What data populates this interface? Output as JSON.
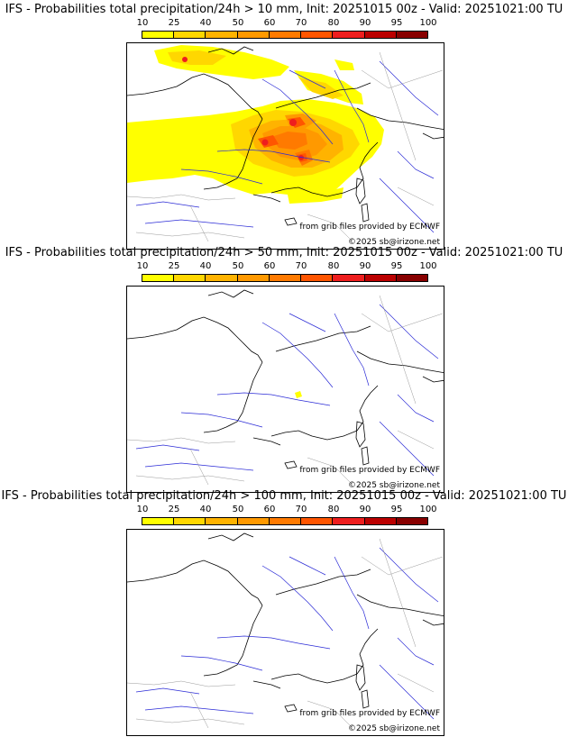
{
  "colorbar": {
    "ticks": [
      "10",
      "25",
      "40",
      "50",
      "60",
      "70",
      "80",
      "90",
      "95",
      "100"
    ],
    "colors": [
      "#ffff00",
      "#ffd700",
      "#ffb300",
      "#ff9900",
      "#ff7a00",
      "#ff5500",
      "#ee1e1e",
      "#bb0000",
      "#880000"
    ]
  },
  "credits": {
    "source": "from grib files provided by ECMWF",
    "copyright": "©2025 sb@irizone.net"
  },
  "panels": [
    {
      "title": "IFS - Probabilities total precipitation/24h > 10 mm, Init: 20251015 00z - Valid: 20251021:00 TU"
    },
    {
      "title": "IFS - Probabilities total precipitation/24h > 50 mm, Init: 20251015 00z - Valid: 20251021:00 TU"
    },
    {
      "title": "IFS - Probabilities total precipitation/24h > 100 mm, Init: 20251015 00z - Valid: 20251021:00 TU"
    }
  ]
}
